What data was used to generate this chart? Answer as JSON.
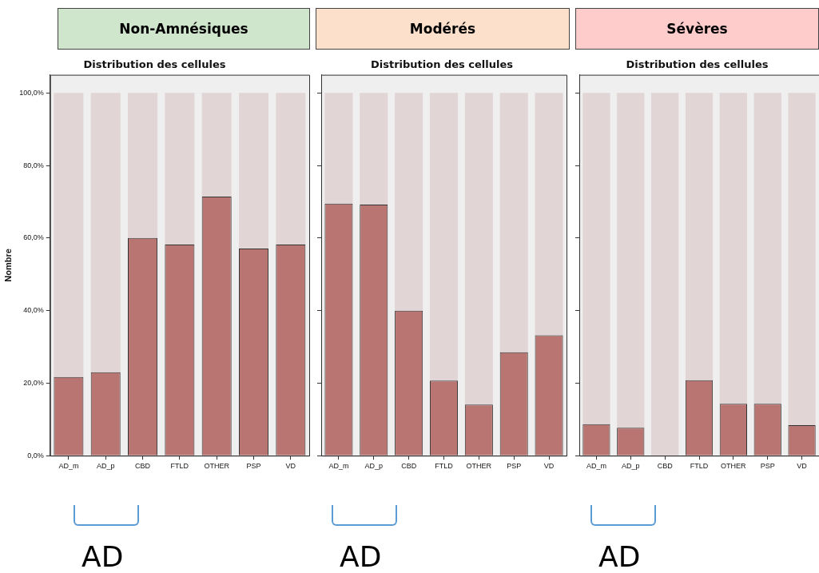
{
  "chart_data": [
    {
      "type": "bar",
      "title": "Non-Amnésiques",
      "subtitle": "Distribution des cellules",
      "ylabel": "Nombre",
      "categories": [
        "AD_m",
        "AD_p",
        "CBD",
        "FTLD",
        "OTHER",
        "PSP",
        "VD"
      ],
      "stacked": true,
      "series": [
        {
          "color": "#b87571",
          "values": [
            21.7,
            23.0,
            60.0,
            58.2,
            71.4,
            57.1,
            58.2
          ]
        },
        {
          "color": "#e2d5d6",
          "values": [
            78.3,
            77.0,
            40.0,
            41.8,
            28.6,
            42.9,
            41.8
          ]
        }
      ],
      "ylim": [
        0,
        105
      ],
      "yticks": [
        {
          "value": 0,
          "label": "0,0%"
        },
        {
          "value": 20,
          "label": "20,0%"
        },
        {
          "value": 40,
          "label": "40,0%"
        },
        {
          "value": 60,
          "label": "60,0%"
        },
        {
          "value": 80,
          "label": "80,0%"
        },
        {
          "value": 100,
          "label": "100,0%"
        }
      ],
      "annotations": [
        "AD"
      ]
    },
    {
      "type": "bar",
      "title": "Modérés",
      "subtitle": "Distribution des cellules",
      "categories": [
        "AD_m",
        "AD_p",
        "CBD",
        "FTLD",
        "OTHER",
        "PSP",
        "VD"
      ],
      "stacked": true,
      "series": [
        {
          "color": "#b87571",
          "values": [
            69.5,
            69.2,
            40.0,
            20.7,
            14.1,
            28.5,
            33.2
          ]
        },
        {
          "color": "#e2d5d6",
          "values": [
            30.5,
            30.8,
            60.0,
            79.3,
            85.9,
            71.5,
            66.8
          ]
        }
      ],
      "ylim": [
        0,
        105
      ],
      "yticks": [
        0,
        20,
        40,
        60,
        80,
        100
      ],
      "tick_labels": "x",
      "annotations": [
        "AD"
      ]
    },
    {
      "type": "bar",
      "title": "Sévères",
      "subtitle": "Distribution des cellules",
      "categories": [
        "AD_m",
        "AD_p",
        "CBD",
        "FTLD",
        "OTHER",
        "PSP",
        "VD"
      ],
      "stacked": true,
      "series": [
        {
          "color": "#b87571",
          "values": [
            8.7,
            7.7,
            0,
            20.8,
            14.3,
            14.3,
            8.4
          ]
        },
        {
          "color": "#e2d5d6",
          "values": [
            91.3,
            92.3,
            100,
            79.2,
            85.7,
            85.7,
            91.6
          ]
        }
      ],
      "ylim": [
        0,
        105
      ],
      "yticks": [
        0,
        20,
        40,
        60,
        80,
        100
      ],
      "tick_labels": "x",
      "annotations": [
        "AD"
      ]
    }
  ]
}
